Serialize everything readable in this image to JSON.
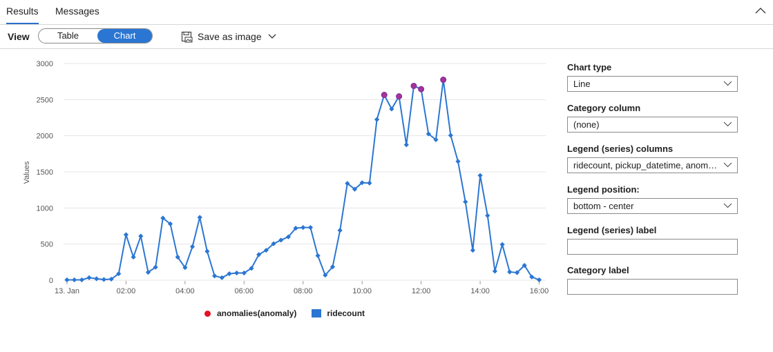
{
  "tabs": [
    {
      "label": "Results",
      "active": true
    },
    {
      "label": "Messages",
      "active": false
    }
  ],
  "toolbar": {
    "view_label": "View",
    "toggle": [
      "Table",
      "Chart"
    ],
    "selected_view": "Chart",
    "save_label": "Save as image"
  },
  "colors": {
    "accent": "#2b76d2",
    "anomaly": "#e81123"
  },
  "chart_data": {
    "type": "line",
    "ylabel": "Values",
    "ylim": [
      0,
      3000
    ],
    "y_ticks": [
      "0",
      "500",
      "1000",
      "1500",
      "2000",
      "2500",
      "3000"
    ],
    "x_tick_labels": [
      "13. Jan",
      "02:00",
      "04:00",
      "06:00",
      "08:00",
      "10:00",
      "12:00",
      "14:00",
      "16:00"
    ],
    "x_start": "13. Jan 00:00",
    "x_step_minutes": 15,
    "grid": true,
    "legend_placement": "bottom-center",
    "series": [
      {
        "name": "ridecount",
        "color": "#2b76d2",
        "values": [
          5,
          5,
          5,
          35,
          20,
          10,
          15,
          90,
          630,
          320,
          610,
          110,
          180,
          860,
          780,
          320,
          175,
          465,
          870,
          400,
          60,
          35,
          90,
          100,
          100,
          165,
          355,
          415,
          505,
          555,
          600,
          720,
          730,
          730,
          340,
          70,
          185,
          690,
          1340,
          1260,
          1350,
          1345,
          2225,
          2565,
          2370,
          2545,
          1875,
          2690,
          2645,
          2025,
          1945,
          2775,
          2005,
          1645,
          1085,
          415,
          1450,
          895,
          125,
          495,
          115,
          105,
          205,
          45,
          5
        ]
      },
      {
        "name": "anomalies(anomaly)",
        "color": "#e81123",
        "indices": [
          43,
          45,
          47,
          48,
          51
        ],
        "values": [
          2565,
          2545,
          2690,
          2645,
          2775
        ]
      }
    ]
  },
  "panel": {
    "chart_type_label": "Chart type",
    "chart_type_value": "Line",
    "category_column_label": "Category column",
    "category_column_value": "(none)",
    "legend_columns_label": "Legend (series) columns",
    "legend_columns_value": "ridecount, pickup_datetime, anomalies(anomaly)",
    "legend_position_label": "Legend position:",
    "legend_position_value": "bottom - center",
    "legend_series_label": "Legend (series) label",
    "legend_series_value": "",
    "category_label": "Category label",
    "category_label_value": ""
  }
}
